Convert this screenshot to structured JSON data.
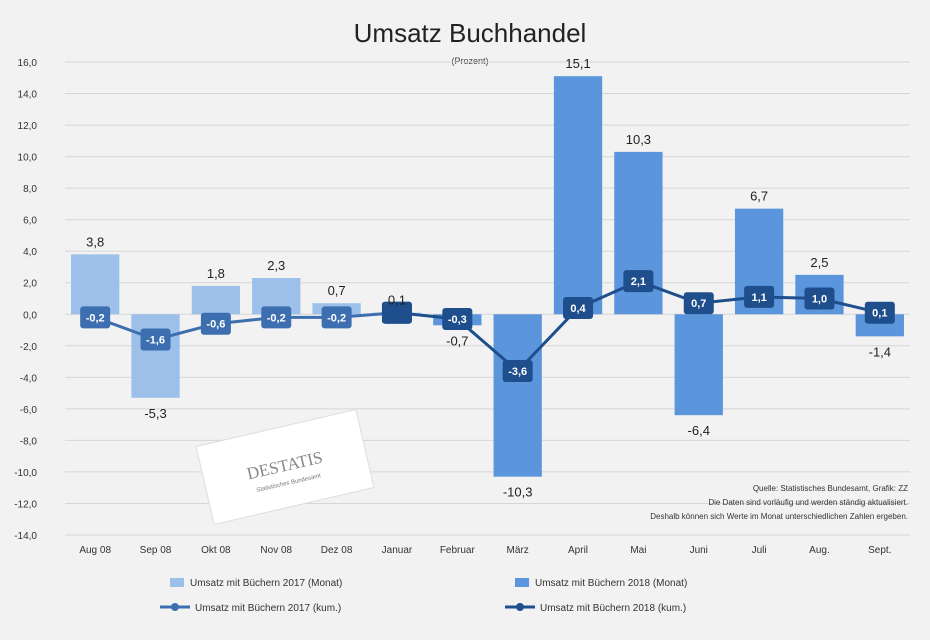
{
  "chart_data": {
    "type": "bar",
    "title": "Umsatz Buchhandel",
    "subtitle": "(Prozent)",
    "categories": [
      "Aug 08",
      "Sep 08",
      "Okt 08",
      "Nov 08",
      "Dez 08",
      "Januar",
      "Februar",
      "März",
      "April",
      "Mai",
      "Juni",
      "Juli",
      "Aug.",
      "Sept."
    ],
    "ylim": [
      -14,
      16
    ],
    "yticks": [
      "16,0",
      "14,0",
      "12,0",
      "10,0",
      "8,0",
      "6,0",
      "4,0",
      "2,0",
      "0,0",
      "-2,0",
      "-4,0",
      "-6,0",
      "-8,0",
      "-10,0",
      "-12,0",
      "-14,0"
    ],
    "ytick_values": [
      16,
      14,
      12,
      10,
      8,
      6,
      4,
      2,
      0,
      -2,
      -4,
      -6,
      -8,
      -10,
      -12,
      -14
    ],
    "series": [
      {
        "name": "Umsatz mit Büchern 2017 (Monat)",
        "kind": "bar",
        "color": "#9dc0ea",
        "values": [
          3.8,
          -5.3,
          1.8,
          2.3,
          0.7,
          0.1,
          null,
          null,
          null,
          null,
          null,
          null,
          null,
          null
        ],
        "labels": [
          "3,8",
          "-5,3",
          "1,8",
          "2,3",
          "0,7",
          "0,1",
          "",
          "",
          "",
          "",
          "",
          "",
          "",
          ""
        ]
      },
      {
        "name": "Umsatz mit Büchern 2018 (Monat)",
        "kind": "bar",
        "color": "#5b95dc",
        "values": [
          null,
          null,
          null,
          null,
          null,
          null,
          -0.7,
          -10.3,
          15.1,
          10.3,
          -6.4,
          6.7,
          2.5,
          -1.4
        ],
        "labels": [
          "",
          "",
          "",
          "",
          "",
          "",
          "-0,7",
          "-10,3",
          "15,1",
          "10,3",
          "-6,4",
          "6,7",
          "2,5",
          "-1,4"
        ]
      },
      {
        "name": "Umsatz mit Büchern 2017 (kum.)",
        "kind": "line",
        "color": "#3d6fb0",
        "values": [
          -0.2,
          -1.6,
          -0.6,
          -0.2,
          -0.2,
          0.1,
          null,
          null,
          null,
          null,
          null,
          null,
          null,
          null
        ],
        "labels": [
          "-0,2",
          "-1,6",
          "-0,6",
          "-0,2",
          "-0,2",
          "0,1",
          "",
          "",
          "",
          "",
          "",
          "",
          "",
          ""
        ]
      },
      {
        "name": "Umsatz mit Büchern 2018 (kum.)",
        "kind": "line",
        "color": "#1f4e8c",
        "values": [
          null,
          null,
          null,
          null,
          null,
          0.1,
          -0.3,
          -3.6,
          0.4,
          2.1,
          0.7,
          1.1,
          1.0,
          0.1
        ],
        "labels": [
          "",
          "",
          "",
          "",
          "",
          "",
          "-0,3",
          "-3,6",
          "0,4",
          "2,1",
          "0,7",
          "1,1",
          "1,0",
          "0,1"
        ]
      }
    ],
    "grid": true,
    "legend_position": "bottom",
    "source_lines": [
      "Quelle: Statistisches Bundesamt, Grafik: ZZ",
      "Die Daten sind vorläufig und werden ständig aktualisiert.",
      "Deshalb können sich Werte im Monat unterschiedlichen Zahlen ergeben."
    ],
    "logo_text": "DESTATIS",
    "logo_subtext": "Statistisches Bundesamt"
  }
}
